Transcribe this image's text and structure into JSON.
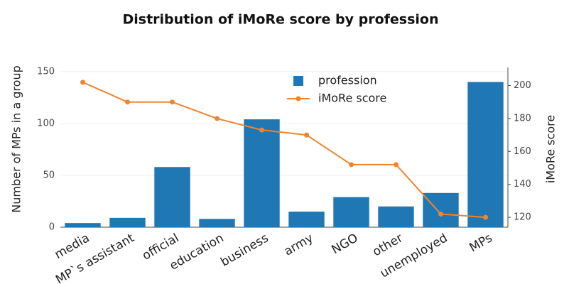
{
  "chart_data": {
    "type": "bar",
    "title": "Distribution of iMoRe score by profession",
    "y_label": "Number of MPs in a group",
    "y2_label": "iMoRe score",
    "categories": [
      "media",
      "MP`s assistant",
      "official",
      "education",
      "business",
      "army",
      "NGO",
      "other",
      "unemployed",
      "MPs"
    ],
    "series": [
      {
        "name": "profession",
        "type": "bar",
        "color": "#1f77b4",
        "values": [
          4,
          9,
          58,
          8,
          104,
          15,
          29,
          20,
          33,
          140
        ]
      },
      {
        "name": "iMoRe score",
        "type": "line",
        "axis": "y2",
        "color": "#f0852d",
        "values": [
          202,
          190,
          190,
          180,
          173,
          170,
          152,
          152,
          122,
          120
        ]
      }
    ],
    "ylim": [
      0,
      154
    ],
    "yticks": [
      0,
      50,
      100,
      150
    ],
    "y2lim": [
      114,
      211
    ],
    "y2ticks": [
      120,
      140,
      160,
      180,
      200
    ],
    "grid": true
  }
}
